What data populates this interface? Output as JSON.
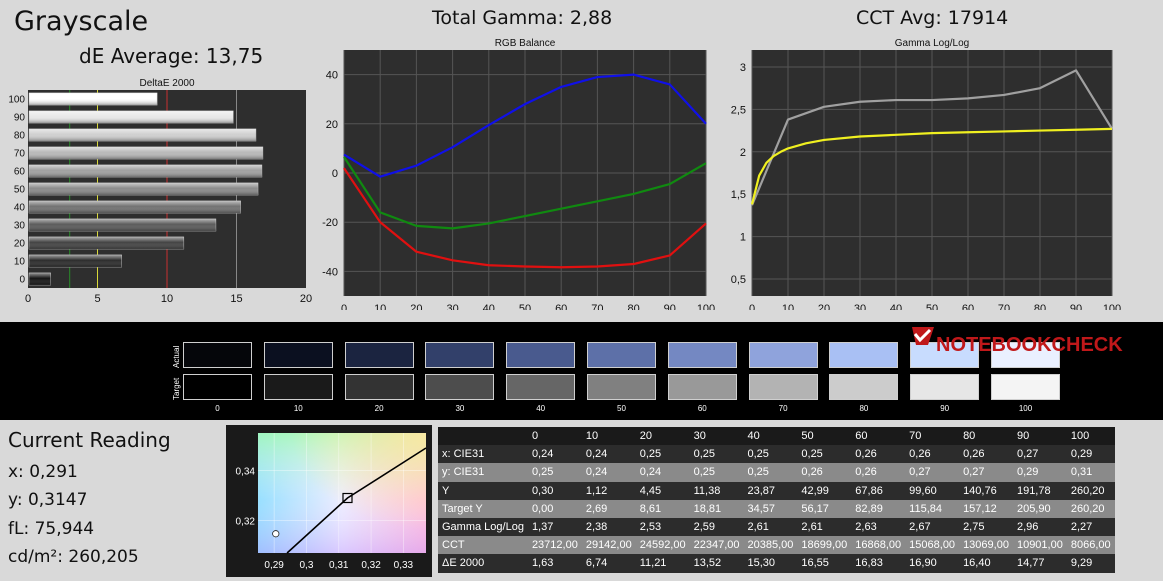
{
  "title": "Grayscale",
  "de_average": "dE Average: 13,75",
  "total_gamma": "Total Gamma: 2,88",
  "cct_avg": "CCT Avg: 17914",
  "chart_data": [
    {
      "type": "bar",
      "title": "DeltaE 2000",
      "orientation": "horizontal",
      "categories": [
        "0",
        "10",
        "20",
        "30",
        "40",
        "50",
        "60",
        "70",
        "80",
        "90",
        "100"
      ],
      "values": [
        1.63,
        6.74,
        11.21,
        13.52,
        15.3,
        16.55,
        16.83,
        16.9,
        16.4,
        14.77,
        9.29
      ],
      "xlim": [
        0,
        20
      ],
      "x_ticks": [
        "0",
        "5",
        "10",
        "15",
        "20"
      ],
      "reference_lines": [
        {
          "x": 3,
          "color": "#2a8a2a"
        },
        {
          "x": 5,
          "color": "#d8d838"
        },
        {
          "x": 10,
          "color": "#c83030"
        },
        {
          "x": 15,
          "color": "#888888"
        }
      ]
    },
    {
      "type": "line",
      "title": "RGB Balance",
      "x": [
        0,
        10,
        20,
        30,
        40,
        50,
        60,
        70,
        80,
        90,
        100
      ],
      "series": [
        {
          "color": "#e01010",
          "values": [
            2,
            -20,
            -32,
            -35.5,
            -37.5,
            -38,
            -38.3,
            -38,
            -37,
            -33.5,
            -20.5
          ]
        },
        {
          "color": "#108a10",
          "values": [
            6.5,
            -16,
            -21.5,
            -22.5,
            -20.5,
            -17.5,
            -14.5,
            -11.5,
            -8.5,
            -4.5,
            4
          ]
        },
        {
          "color": "#1010e8",
          "values": [
            7.5,
            -1.5,
            3,
            10.5,
            19.5,
            28,
            35,
            39,
            40,
            36,
            20
          ]
        }
      ],
      "xlim": [
        0,
        100
      ],
      "ylim": [
        -50,
        50
      ],
      "x_ticks": [
        "0",
        "10",
        "20",
        "30",
        "40",
        "50",
        "60",
        "70",
        "80",
        "90",
        "100"
      ],
      "y_ticks": [
        "-40",
        "-20",
        "0",
        "20",
        "40"
      ]
    },
    {
      "type": "line",
      "title": "Gamma Log/Log",
      "x": [
        0,
        10,
        20,
        30,
        40,
        50,
        60,
        70,
        80,
        90,
        100
      ],
      "series": [
        {
          "color": "#a0a0a0",
          "x": [
            0,
            10,
            20,
            30,
            40,
            50,
            60,
            70,
            80,
            90,
            100
          ],
          "values": [
            1.37,
            2.38,
            2.53,
            2.59,
            2.61,
            2.61,
            2.63,
            2.67,
            2.75,
            2.96,
            2.27
          ]
        },
        {
          "color": "#f0f020",
          "x": [
            0,
            2,
            4,
            6,
            8,
            10,
            15,
            20,
            30,
            40,
            50,
            60,
            70,
            80,
            90,
            100
          ],
          "values": [
            1.38,
            1.72,
            1.87,
            1.95,
            2.0,
            2.04,
            2.1,
            2.14,
            2.18,
            2.2,
            2.22,
            2.23,
            2.24,
            2.25,
            2.26,
            2.27
          ]
        }
      ],
      "xlim": [
        0,
        100
      ],
      "ylim": [
        0.3,
        3.2
      ],
      "x_ticks": [
        "0",
        "10",
        "20",
        "30",
        "40",
        "50",
        "60",
        "70",
        "80",
        "90",
        "100"
      ],
      "y_ticks": [
        "0,5",
        "1",
        "1,5",
        "2",
        "2,5",
        "3"
      ]
    },
    {
      "type": "scatter",
      "title": "",
      "xlim": [
        0.285,
        0.337
      ],
      "ylim": [
        0.307,
        0.355
      ],
      "x_ticks": [
        "0,29",
        "0,3",
        "0,31",
        "0,32",
        "0,33"
      ],
      "y_ticks": [
        "0,32",
        "0,34"
      ],
      "points": [
        {
          "name": "measured",
          "x": 0.2905,
          "y": 0.3147,
          "marker": "circle"
        },
        {
          "name": "target",
          "x": 0.3127,
          "y": 0.329,
          "marker": "square"
        }
      ],
      "planckian_locus": [
        [
          0.294,
          0.307
        ],
        [
          0.3127,
          0.329
        ],
        [
          0.337,
          0.349
        ]
      ]
    },
    {
      "type": "table",
      "columns": [
        "",
        "0",
        "10",
        "20",
        "30",
        "40",
        "50",
        "60",
        "70",
        "80",
        "90",
        "100"
      ],
      "rows": [
        [
          "x: CIE31",
          "0,24",
          "0,24",
          "0,25",
          "0,25",
          "0,25",
          "0,25",
          "0,26",
          "0,26",
          "0,26",
          "0,27",
          "0,29"
        ],
        [
          "y: CIE31",
          "0,25",
          "0,24",
          "0,24",
          "0,25",
          "0,25",
          "0,26",
          "0,26",
          "0,27",
          "0,27",
          "0,29",
          "0,31"
        ],
        [
          "Y",
          "0,30",
          "1,12",
          "4,45",
          "11,38",
          "23,87",
          "42,99",
          "67,86",
          "99,60",
          "140,76",
          "191,78",
          "260,20"
        ],
        [
          "Target Y",
          "0,00",
          "2,69",
          "8,61",
          "18,81",
          "34,57",
          "56,17",
          "82,89",
          "115,84",
          "157,12",
          "205,90",
          "260,20"
        ],
        [
          "Gamma Log/Log",
          "1,37",
          "2,38",
          "2,53",
          "2,59",
          "2,61",
          "2,61",
          "2,63",
          "2,67",
          "2,75",
          "2,96",
          "2,27"
        ],
        [
          "CCT",
          "23712,00",
          "29142,00",
          "24592,00",
          "22347,00",
          "20385,00",
          "18699,00",
          "16868,00",
          "15068,00",
          "13069,00",
          "10901,00",
          "8066,00"
        ],
        [
          "ΔE 2000",
          "1,63",
          "6,74",
          "11,21",
          "13,52",
          "15,30",
          "16,55",
          "16,83",
          "16,90",
          "16,40",
          "14,77",
          "9,29"
        ]
      ]
    }
  ],
  "swatches": {
    "actual_label": "Actual",
    "target_label": "Target",
    "labels": [
      "0",
      "10",
      "20",
      "30",
      "40",
      "50",
      "60",
      "70",
      "80",
      "90",
      "100"
    ],
    "actual_colors": [
      "#05060a",
      "#0b1020",
      "#1b2440",
      "#32406a",
      "#495a8e",
      "#5d70a8",
      "#7488c2",
      "#8fa3dc",
      "#a9c0f4",
      "#c8dcfe",
      "#eaf0ff"
    ],
    "target_colors": [
      "#000000",
      "#1a1a1a",
      "#333333",
      "#4d4d4d",
      "#666666",
      "#808080",
      "#999999",
      "#b3b3b3",
      "#cccccc",
      "#e6e6e6",
      "#f4f4f4"
    ]
  },
  "logo": {
    "text": "NOTEBOOKCHECK"
  },
  "current_reading": {
    "title": "Current Reading",
    "x": "x: 0,291",
    "y": "y: 0,3147",
    "fl": "fL: 75,944",
    "cd": "cd/m²: 260,205"
  }
}
